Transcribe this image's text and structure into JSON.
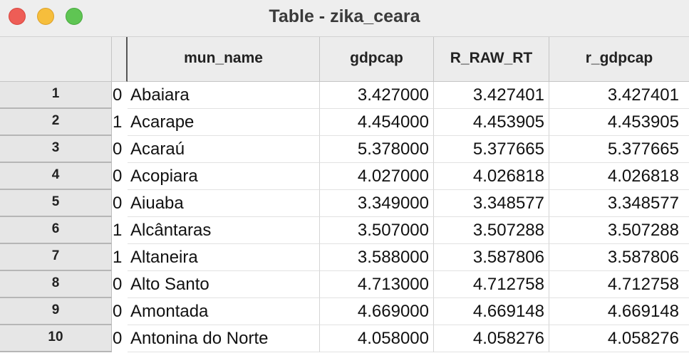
{
  "window": {
    "title": "Table - zika_ceara"
  },
  "table": {
    "columns": [
      "mun_name",
      "gdpcap",
      "R_RAW_RT",
      "r_gdpcap"
    ],
    "rows": [
      {
        "index": "1",
        "flag": "0",
        "mun_name": "Abaiara",
        "gdpcap": "3.427000",
        "R_RAW_RT": "3.427401",
        "r_gdpcap": "3.427401"
      },
      {
        "index": "2",
        "flag": "1",
        "mun_name": "Acarape",
        "gdpcap": "4.454000",
        "R_RAW_RT": "4.453905",
        "r_gdpcap": "4.453905"
      },
      {
        "index": "3",
        "flag": "0",
        "mun_name": "Acaraú",
        "gdpcap": "5.378000",
        "R_RAW_RT": "5.377665",
        "r_gdpcap": "5.377665"
      },
      {
        "index": "4",
        "flag": "0",
        "mun_name": "Acopiara",
        "gdpcap": "4.027000",
        "R_RAW_RT": "4.026818",
        "r_gdpcap": "4.026818"
      },
      {
        "index": "5",
        "flag": "0",
        "mun_name": "Aiuaba",
        "gdpcap": "3.349000",
        "R_RAW_RT": "3.348577",
        "r_gdpcap": "3.348577"
      },
      {
        "index": "6",
        "flag": "1",
        "mun_name": "Alcântaras",
        "gdpcap": "3.507000",
        "R_RAW_RT": "3.507288",
        "r_gdpcap": "3.507288"
      },
      {
        "index": "7",
        "flag": "1",
        "mun_name": "Altaneira",
        "gdpcap": "3.588000",
        "R_RAW_RT": "3.587806",
        "r_gdpcap": "3.587806"
      },
      {
        "index": "8",
        "flag": "0",
        "mun_name": "Alto Santo",
        "gdpcap": "4.713000",
        "R_RAW_RT": "4.712758",
        "r_gdpcap": "4.712758"
      },
      {
        "index": "9",
        "flag": "0",
        "mun_name": "Amontada",
        "gdpcap": "4.669000",
        "R_RAW_RT": "4.669148",
        "r_gdpcap": "4.669148"
      },
      {
        "index": "10",
        "flag": "0",
        "mun_name": "Antonina do Norte",
        "gdpcap": "4.058000",
        "R_RAW_RT": "4.058276",
        "r_gdpcap": "4.058276"
      }
    ]
  }
}
